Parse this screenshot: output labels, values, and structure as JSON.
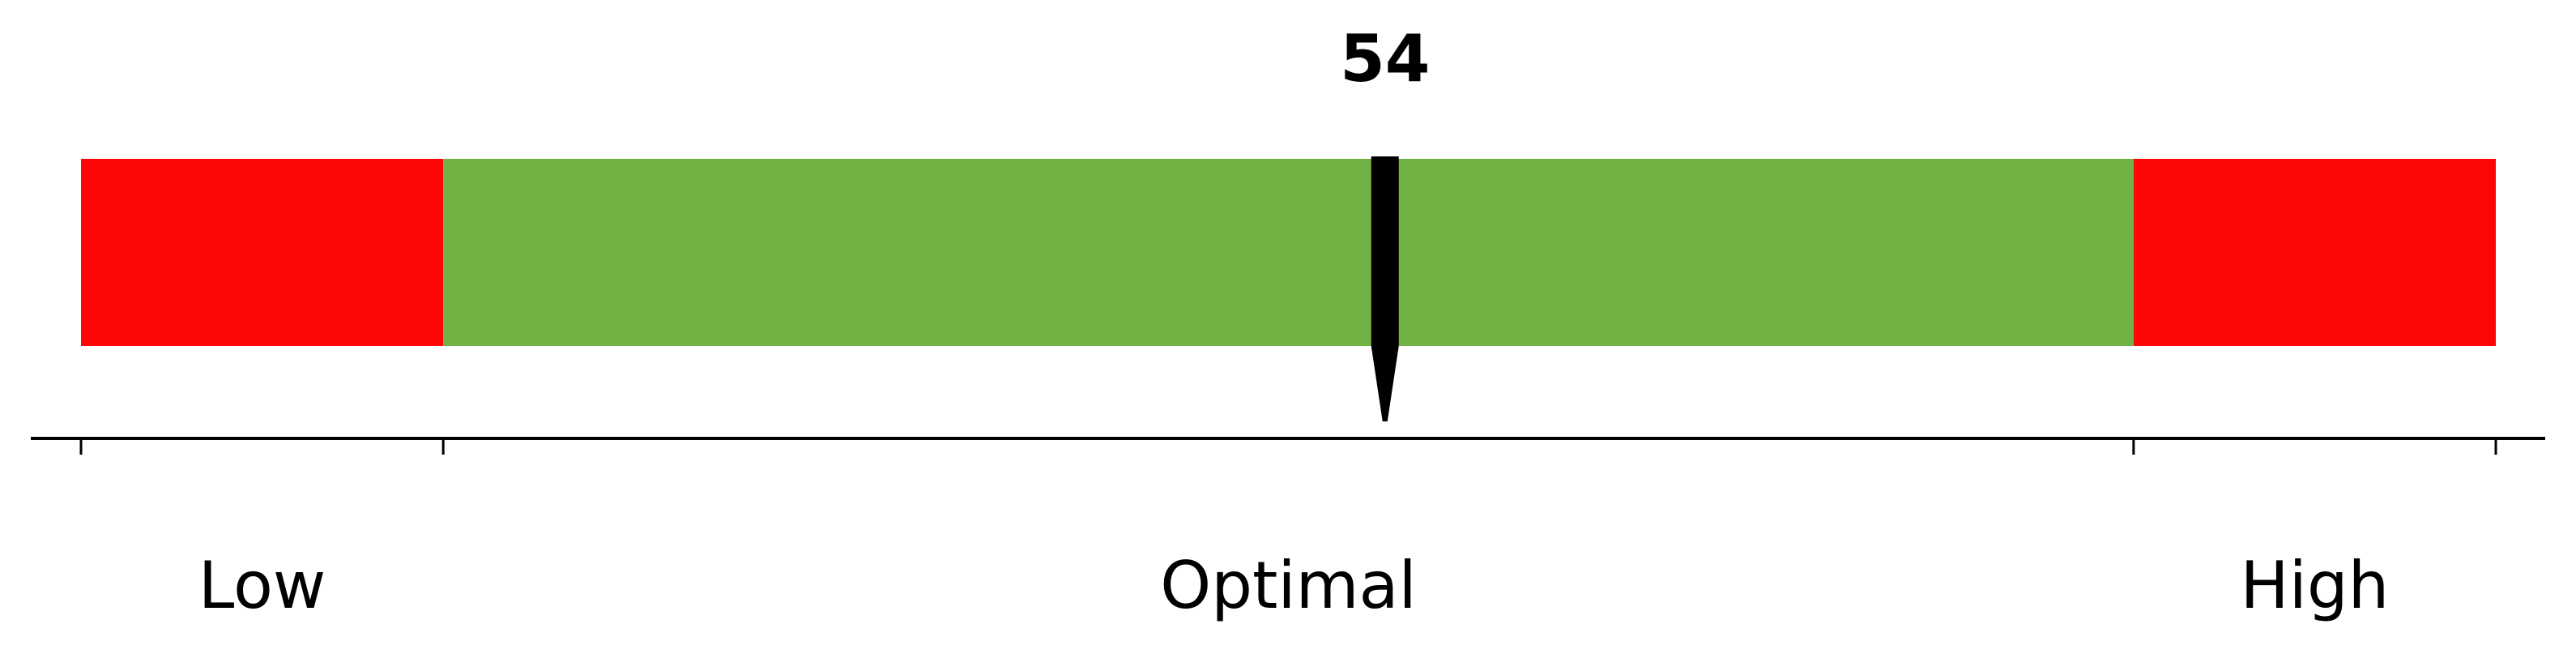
{
  "chart_data": {
    "type": "bar",
    "orientation": "horizontal-range-gauge",
    "value": 54,
    "value_label": "54",
    "xlim": [
      0,
      100
    ],
    "zones": [
      {
        "label": "Low",
        "start": 0,
        "end": 15,
        "color": "#ff0606"
      },
      {
        "label": "Optimal",
        "start": 15,
        "end": 85,
        "color": "#71b244"
      },
      {
        "label": "High",
        "start": 85,
        "end": 100,
        "color": "#ff0606"
      }
    ],
    "tick_values": [
      0,
      15,
      85,
      100
    ],
    "tick_labels": [
      "",
      "",
      "",
      ""
    ],
    "grid": false,
    "legend": "none",
    "title": "",
    "xlabel": "",
    "ylabel": "",
    "colors": {
      "marker": "#000000",
      "axis": "#000000"
    }
  }
}
